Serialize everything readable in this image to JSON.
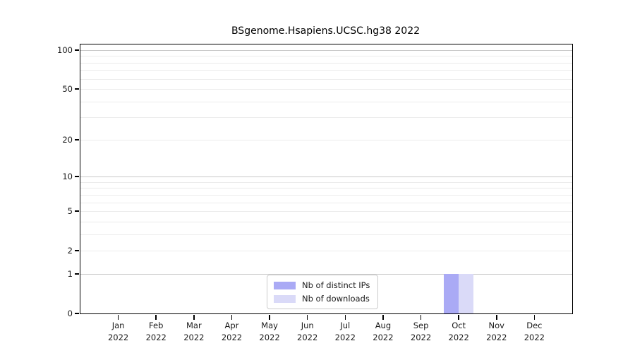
{
  "chart_data": {
    "type": "bar",
    "title": "BSgenome.Hsapiens.UCSC.hg38 2022",
    "categories": [
      "Jan 2022",
      "Feb 2022",
      "Mar 2022",
      "Apr 2022",
      "May 2022",
      "Jun 2022",
      "Jul 2022",
      "Aug 2022",
      "Sep 2022",
      "Oct 2022",
      "Nov 2022",
      "Dec 2022"
    ],
    "series": [
      {
        "name": "Nb of distinct IPs",
        "color": "#aaaaf5",
        "values": [
          0,
          0,
          0,
          0,
          0,
          0,
          0,
          0,
          0,
          1,
          0,
          0
        ]
      },
      {
        "name": "Nb of downloads",
        "color": "#dadaf8",
        "values": [
          0,
          0,
          0,
          0,
          0,
          0,
          0,
          0,
          0,
          1,
          0,
          0
        ]
      }
    ],
    "xlabel": "",
    "ylabel": "",
    "yscale": "log1p",
    "ylim": [
      0,
      112
    ],
    "yticks": [
      0,
      1,
      2,
      5,
      10,
      20,
      50,
      100
    ],
    "gridlines_major": [
      1,
      10,
      100
    ],
    "gridlines_minor": [
      2,
      3,
      4,
      5,
      6,
      7,
      8,
      9,
      20,
      30,
      40,
      50,
      60,
      70,
      80,
      90
    ],
    "grid": "horizontal",
    "legend_position": "inside-bottom-center"
  }
}
